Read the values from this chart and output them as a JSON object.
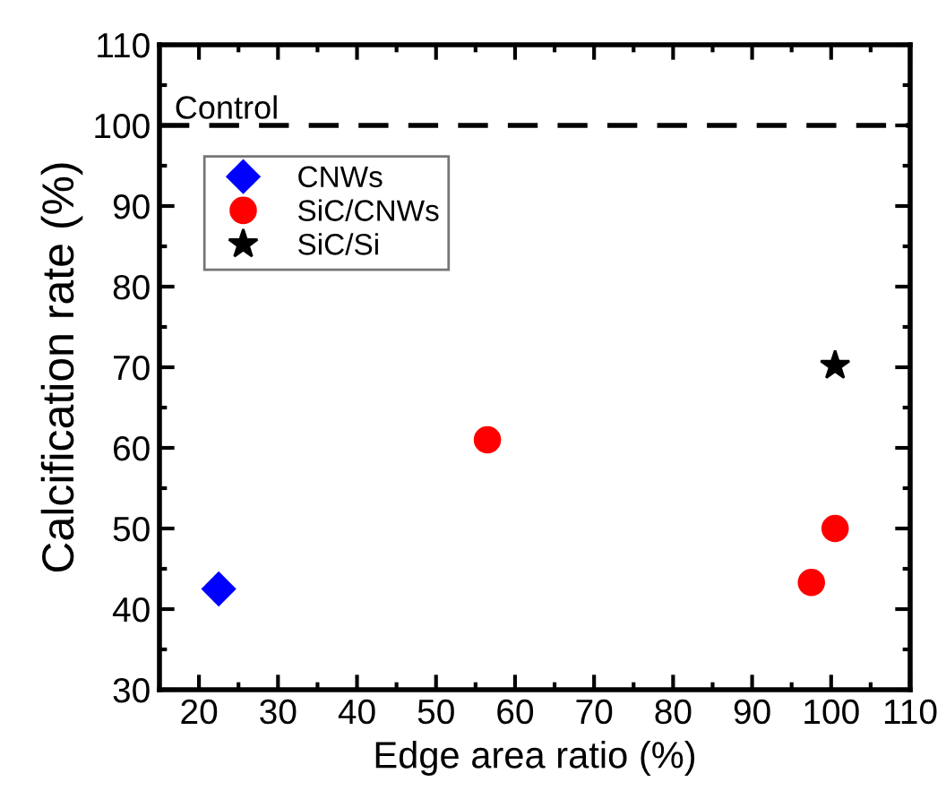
{
  "chart_data": {
    "type": "scatter",
    "xlabel": "Edge area ratio (%)",
    "ylabel": "Calcification rate (%)",
    "xlim": [
      15,
      110
    ],
    "xticks": [
      20,
      30,
      40,
      50,
      60,
      70,
      80,
      90,
      100,
      110
    ],
    "ylim": [
      30,
      110
    ],
    "yticks": [
      30,
      40,
      50,
      60,
      70,
      80,
      90,
      100,
      110
    ],
    "grid": false,
    "legend": "upper left",
    "series": [
      {
        "name": "CNWs",
        "color": "#0000ff",
        "marker": "diamond",
        "x": [
          22.5
        ],
        "values": [
          42.5
        ]
      },
      {
        "name": "SiC/CNWs",
        "color": "#ff0000",
        "marker": "circle",
        "x": [
          56.5,
          97.5,
          100.5
        ],
        "values": [
          61,
          43.3,
          50
        ]
      },
      {
        "name": "SiC/Si",
        "color": "#000000",
        "marker": "star",
        "x": [
          100.5
        ],
        "values": [
          70.2
        ]
      }
    ],
    "ref_lines": [
      {
        "axis": "y",
        "value": 100,
        "label": "Control",
        "color": "#000000",
        "line_style": "dashed"
      }
    ]
  }
}
